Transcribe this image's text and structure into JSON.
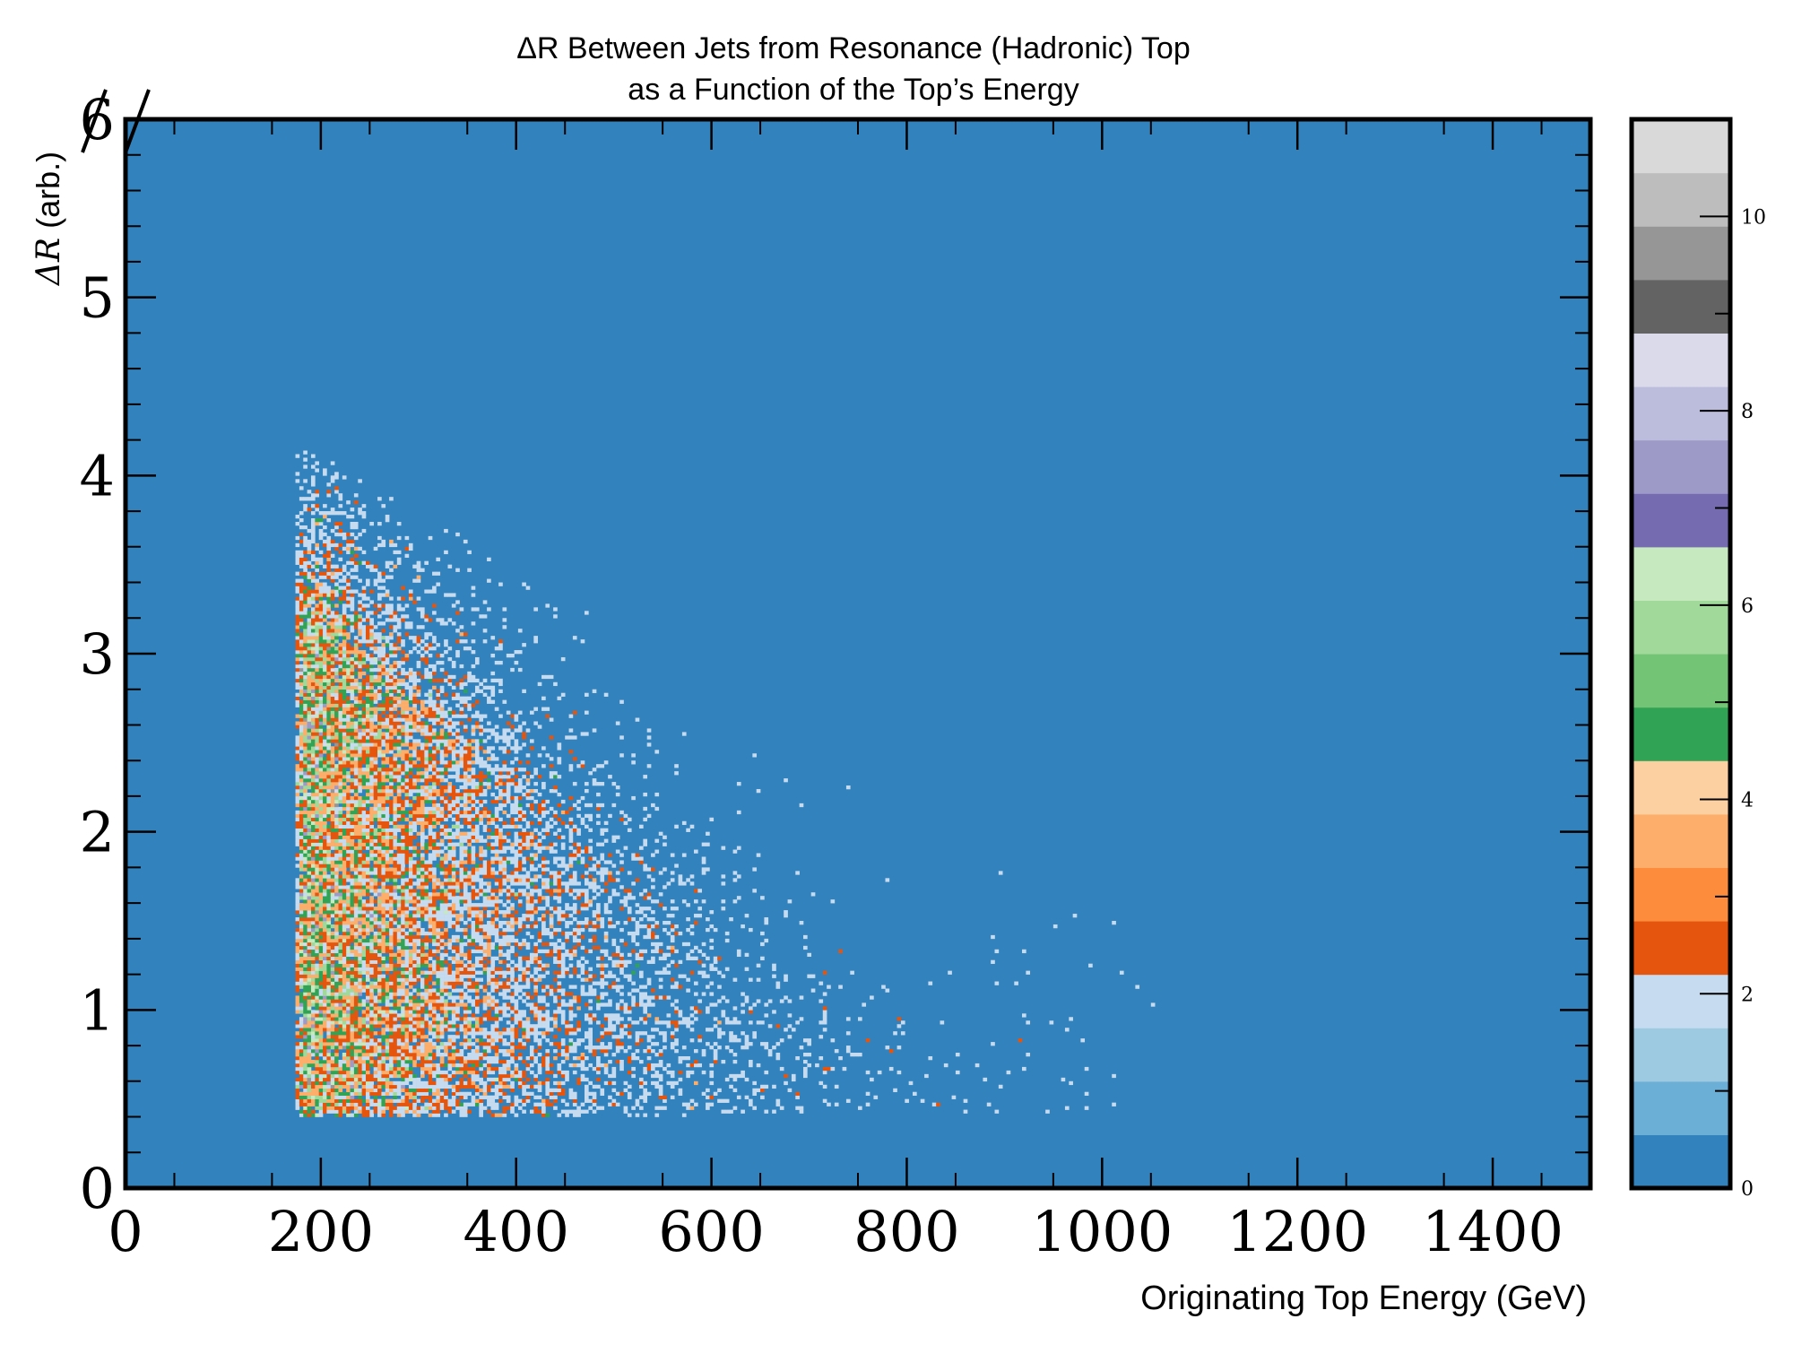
{
  "chart_data": {
    "type": "heatmap",
    "title_lines": [
      "ΔR Between Jets from Resonance (Hadronic) Top",
      "as a Function of the Top’s Energy"
    ],
    "xlabel": "Originating Top Energy (GeV)",
    "ylabel_symbol": "ΔR",
    "ylabel_unit": " (arb.)",
    "xlim": [
      0,
      1500
    ],
    "ylim": [
      0,
      6
    ],
    "x_ticks": [
      0,
      200,
      400,
      600,
      800,
      1000,
      1200,
      1400
    ],
    "x_tick_labels": [
      "0",
      "200",
      "400",
      "600",
      "800",
      "1000",
      "1200",
      "1400"
    ],
    "y_ticks": [
      0,
      1,
      2,
      3,
      4,
      5,
      6
    ],
    "y_tick_labels": [
      "0",
      "1",
      "2",
      "3",
      "4",
      "5",
      "6"
    ],
    "background_value": 0,
    "colorbar": {
      "range": [
        0,
        11
      ],
      "ticks": [
        0,
        2,
        4,
        6,
        8,
        10
      ],
      "tick_labels": [
        "0",
        "2",
        "4",
        "6",
        "8",
        "10"
      ],
      "colors": [
        "#3182bd",
        "#6baed6",
        "#9ecae1",
        "#c6dbef",
        "#e6550d",
        "#fd8d3c",
        "#fdae6b",
        "#fdd0a2",
        "#31a354",
        "#74c476",
        "#a1d99b",
        "#c7e9c0",
        "#756bb1",
        "#9e9ac8",
        "#bcbddc",
        "#dadaeb",
        "#636363",
        "#969696",
        "#bdbdbd",
        "#d9d9d9"
      ]
    },
    "density_model": {
      "energy_threshold_gev": 170,
      "energy_peak_gev": 230,
      "dr_min": 0.4,
      "dr_max_at_threshold": 4.2,
      "dr_band_peak": [
        1.0,
        3.2
      ],
      "dr_floor_high_energy": 0.4,
      "counts_peak_max": 7
    }
  }
}
